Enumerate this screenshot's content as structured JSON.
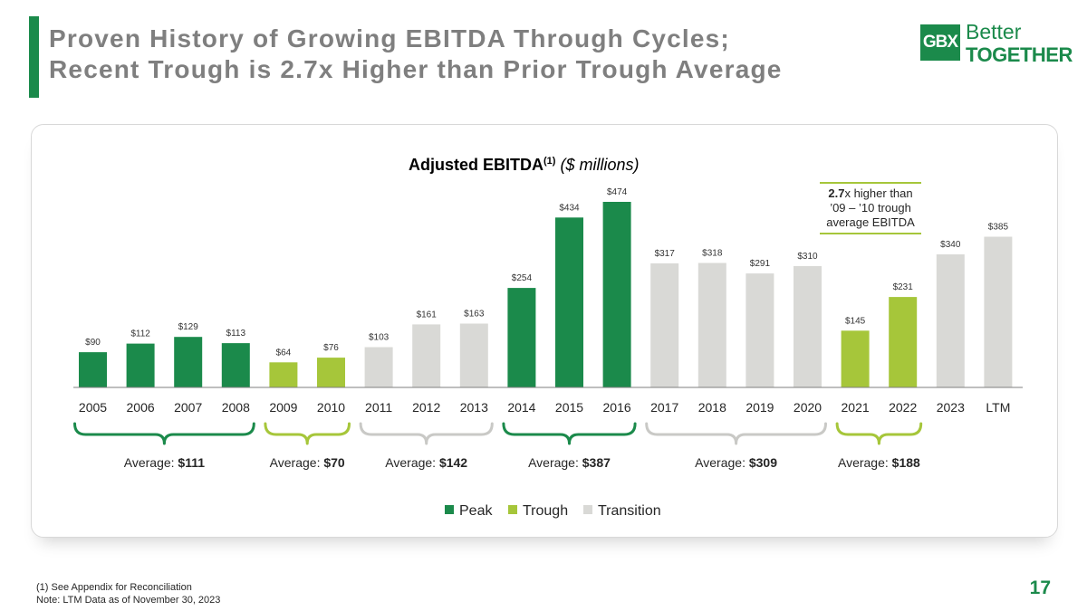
{
  "header": {
    "title_line1": "Proven History of Growing EBITDA Through Cycles;",
    "title_line2": "Recent Trough is 2.7x Higher than Prior Trough Average"
  },
  "logo": {
    "mark": "GBX",
    "better": "Better",
    "together": "TOGETHER"
  },
  "chart_data": {
    "type": "bar",
    "title": "Adjusted EBITDA",
    "title_superscript": "(1)",
    "title_units": "($ millions)",
    "categories": [
      "2005",
      "2006",
      "2007",
      "2008",
      "2009",
      "2010",
      "2011",
      "2012",
      "2013",
      "2014",
      "2015",
      "2016",
      "2017",
      "2018",
      "2019",
      "2020",
      "2021",
      "2022",
      "2023",
      "LTM"
    ],
    "values": [
      90,
      112,
      129,
      113,
      64,
      76,
      103,
      161,
      163,
      254,
      434,
      474,
      317,
      318,
      291,
      310,
      145,
      231,
      340,
      385
    ],
    "value_labels": [
      "$90",
      "$112",
      "$129",
      "$113",
      "$64",
      "$76",
      "$103",
      "$161",
      "$163",
      "$254",
      "$434",
      "$474",
      "$317",
      "$318",
      "$291",
      "$310",
      "$145",
      "$231",
      "$340",
      "$385"
    ],
    "phases": [
      "peak",
      "peak",
      "peak",
      "peak",
      "trough",
      "trough",
      "transition",
      "transition",
      "transition",
      "peak",
      "peak",
      "peak",
      "transition",
      "transition",
      "transition",
      "transition",
      "trough",
      "trough",
      "transition",
      "transition"
    ],
    "ylim": [
      0,
      520
    ],
    "grid": false,
    "legend": {
      "position": "bottom-center",
      "entries": [
        {
          "key": "peak",
          "label": "Peak"
        },
        {
          "key": "trough",
          "label": "Trough"
        },
        {
          "key": "transition",
          "label": "Transition"
        }
      ]
    },
    "averages": [
      {
        "label": "Average: ",
        "value": "$111",
        "from": 0,
        "to": 3,
        "phase": "peak"
      },
      {
        "label": "Average: ",
        "value": "$70",
        "from": 4,
        "to": 5,
        "phase": "trough"
      },
      {
        "label": "Average: ",
        "value": "$142",
        "from": 6,
        "to": 8,
        "phase": "transition"
      },
      {
        "label": "Average: ",
        "value": "$387",
        "from": 9,
        "to": 11,
        "phase": "peak"
      },
      {
        "label": "Average: ",
        "value": "$309",
        "from": 12,
        "to": 15,
        "phase": "transition"
      },
      {
        "label": "Average: ",
        "value": "$188",
        "from": 16,
        "to": 17,
        "phase": "trough"
      }
    ],
    "callout": {
      "multiple": "2.7",
      "line1_rest": "x higher than",
      "line2": "’09 – ’10 trough",
      "line3": "average EBITDA"
    }
  },
  "colors": {
    "peak": "#1b8a4b",
    "trough": "#a6c63a",
    "transition": "#d9d9d6",
    "accent": "#1b8a4b",
    "title_gray": "#7f7f7f",
    "axis": "#7f7f7f"
  },
  "footnotes": {
    "line1": "(1)  See Appendix for Reconciliation",
    "line2": "Note: LTM Data as of November 30, 2023"
  },
  "page_number": "17"
}
